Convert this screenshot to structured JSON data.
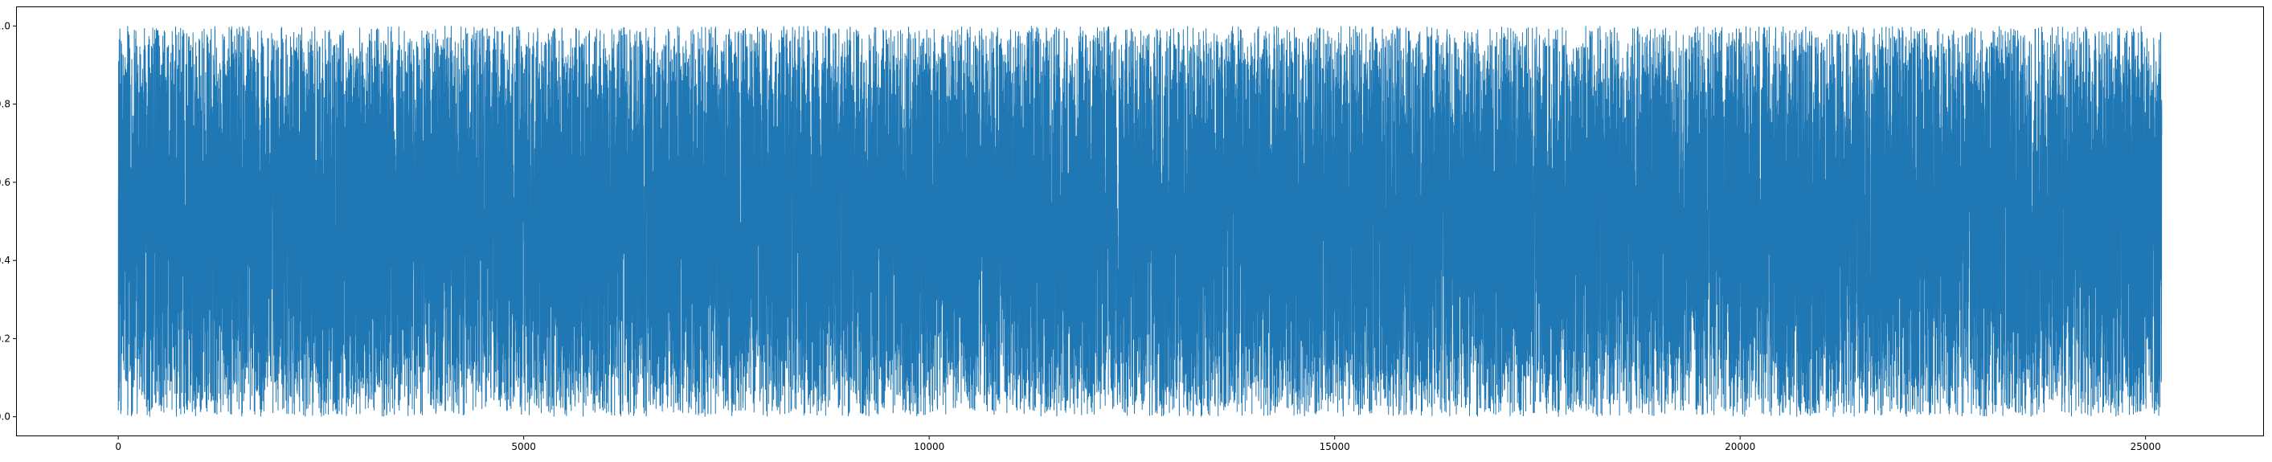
{
  "chart_data": {
    "type": "line",
    "title": "",
    "xlabel": "",
    "ylabel": "",
    "xlim": [
      -1260,
      26460
    ],
    "ylim": [
      -0.05,
      1.05
    ],
    "x_ticks": [
      {
        "value": 0,
        "label": "0"
      },
      {
        "value": 5000,
        "label": "5000"
      },
      {
        "value": 10000,
        "label": "10000"
      },
      {
        "value": 15000,
        "label": "15000"
      },
      {
        "value": 20000,
        "label": "20000"
      },
      {
        "value": 25000,
        "label": "25000"
      }
    ],
    "y_ticks": [
      {
        "value": 0.0,
        "label": "0.0"
      },
      {
        "value": 0.2,
        "label": "0.2"
      },
      {
        "value": 0.4,
        "label": "0.4"
      },
      {
        "value": 0.6,
        "label": "0.6"
      },
      {
        "value": 0.8,
        "label": "0.8"
      },
      {
        "value": 1.0,
        "label": "1.0"
      }
    ],
    "grid": false,
    "legend": "none",
    "series": [
      {
        "color": "#1f77b4",
        "x_start": 0,
        "x_end": 25200,
        "n_points": 25200,
        "min": 0.0,
        "max": 1.0,
        "distribution": "uniform random noise"
      }
    ]
  }
}
